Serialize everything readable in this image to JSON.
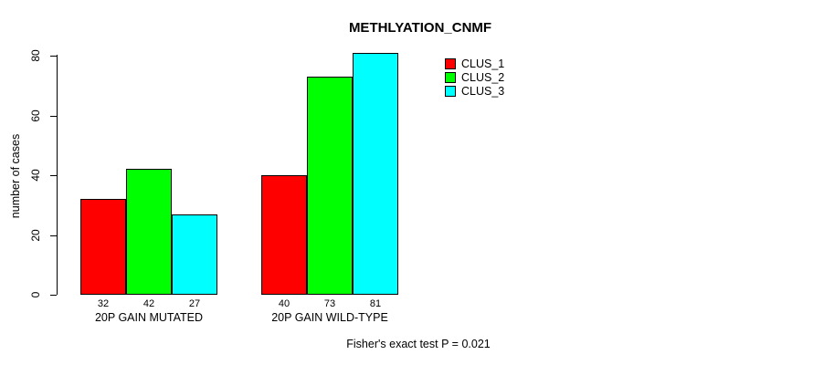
{
  "chart_data": {
    "type": "bar",
    "title": "METHLYATION_CNMF",
    "ylabel": "number of cases",
    "ylim": [
      0,
      80
    ],
    "yticks": [
      0,
      20,
      40,
      60,
      80
    ],
    "categories": [
      "20P GAIN MUTATED",
      "20P GAIN WILD-TYPE"
    ],
    "series": [
      {
        "name": "CLUS_1",
        "color": "#FF0000",
        "values": [
          32,
          40
        ]
      },
      {
        "name": "CLUS_2",
        "color": "#00FF00",
        "values": [
          42,
          73
        ]
      },
      {
        "name": "CLUS_3",
        "color": "#00FFFF",
        "values": [
          27,
          81
        ]
      }
    ],
    "bar_value_labels": [
      [
        "32",
        "42",
        "27"
      ],
      [
        "40",
        "73",
        "81"
      ]
    ],
    "annotation": "Fisher's exact test P = 0.021",
    "legend_position": "top-right",
    "grid": false,
    "bar_border_color": "#000000",
    "background_color": "#FFFFFF"
  }
}
